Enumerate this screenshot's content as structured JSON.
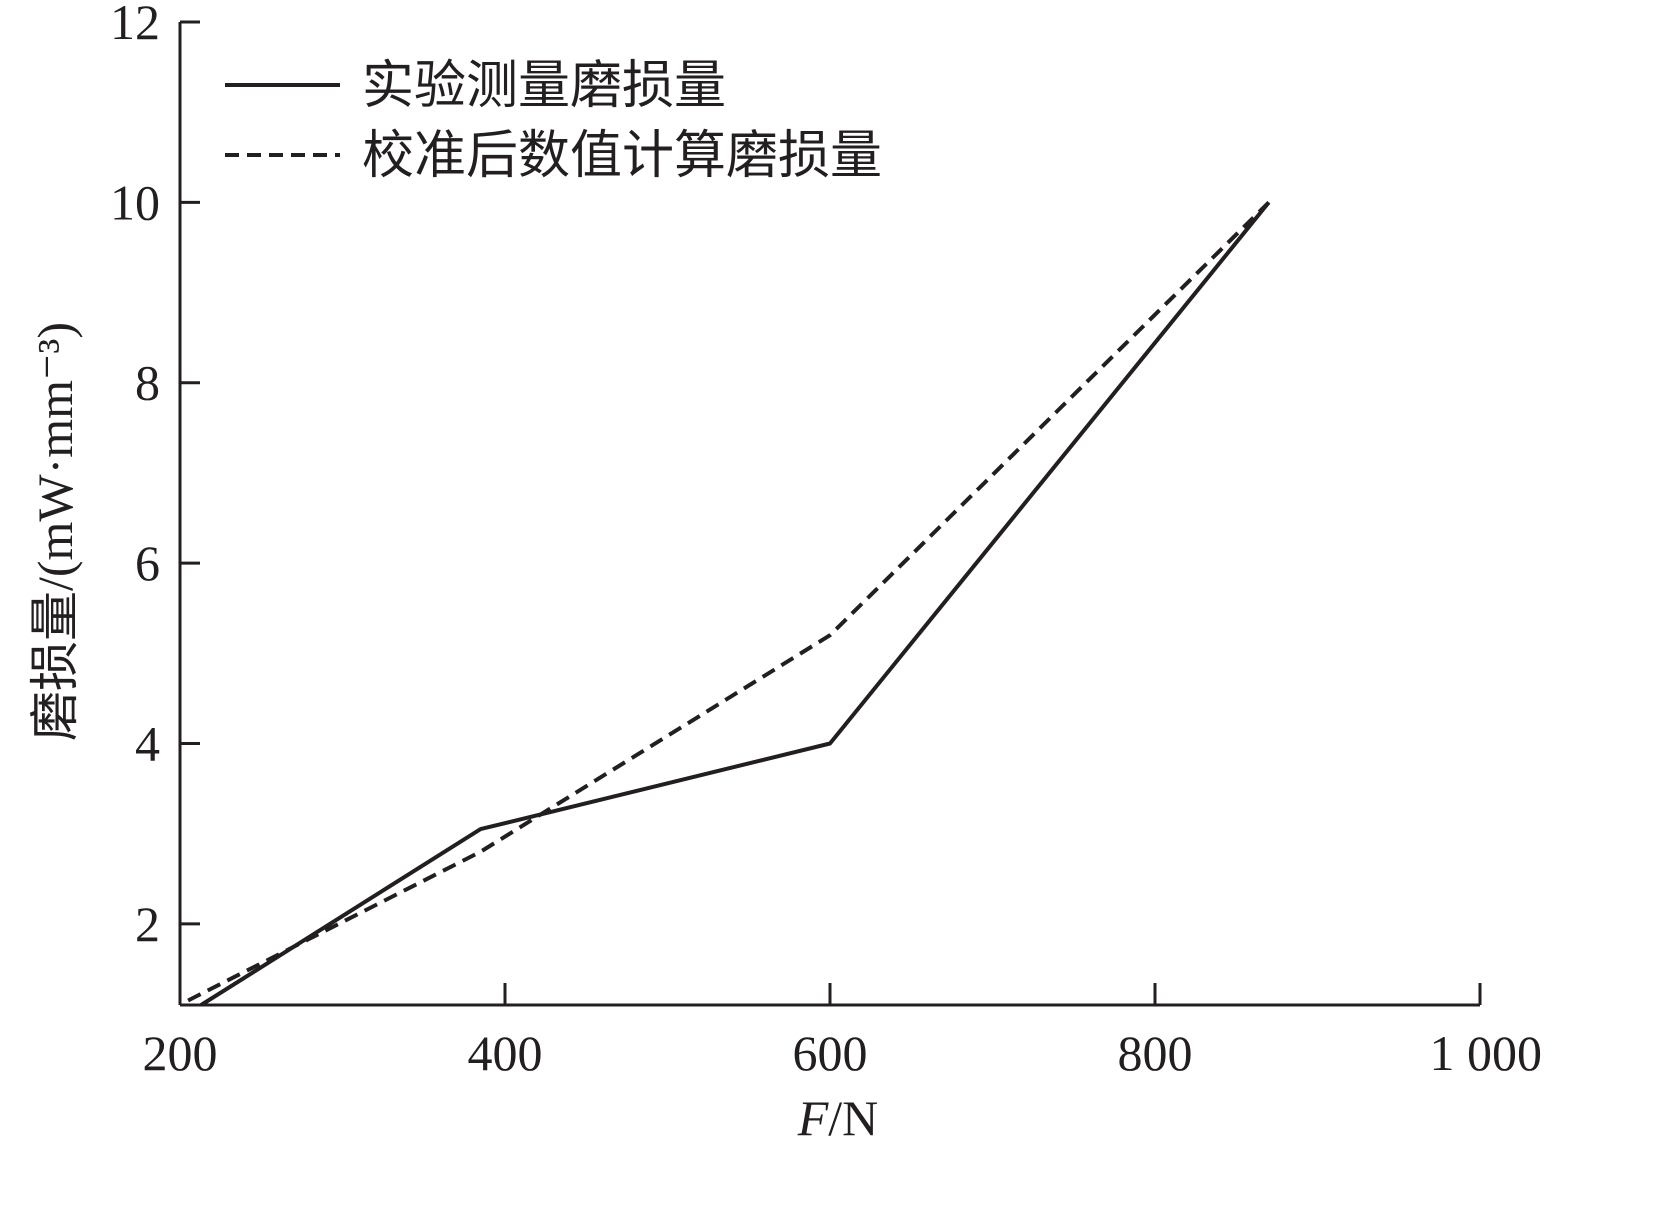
{
  "chart_data": {
    "type": "line",
    "xlabel": {
      "var": "F",
      "unit": "/N"
    },
    "ylabel": "磨损量/(mW·mm⁻³)",
    "xlim": [
      200,
      1000
    ],
    "ylim": [
      1.1,
      12
    ],
    "x_ticks": [
      200,
      400,
      600,
      800,
      1000
    ],
    "x_tick_labels": [
      "200",
      "400",
      "600",
      "800",
      "1 000"
    ],
    "y_ticks": [
      2,
      4,
      6,
      8,
      10,
      12
    ],
    "y_tick_labels": [
      "2",
      "4",
      "6",
      "8",
      "10",
      "12"
    ],
    "grid": false,
    "legend_position": "top-left",
    "series": [
      {
        "name": "实验测量磨损量",
        "style": "solid",
        "color": "#231f20",
        "x": [
          213,
          385,
          600,
          870
        ],
        "y": [
          1.1,
          3.05,
          4.0,
          10.0
        ]
      },
      {
        "name": "校准后数值计算磨损量",
        "style": "dashed",
        "color": "#231f20",
        "x": [
          205,
          385,
          600,
          870
        ],
        "y": [
          1.15,
          2.8,
          5.2,
          10.0
        ]
      }
    ]
  }
}
